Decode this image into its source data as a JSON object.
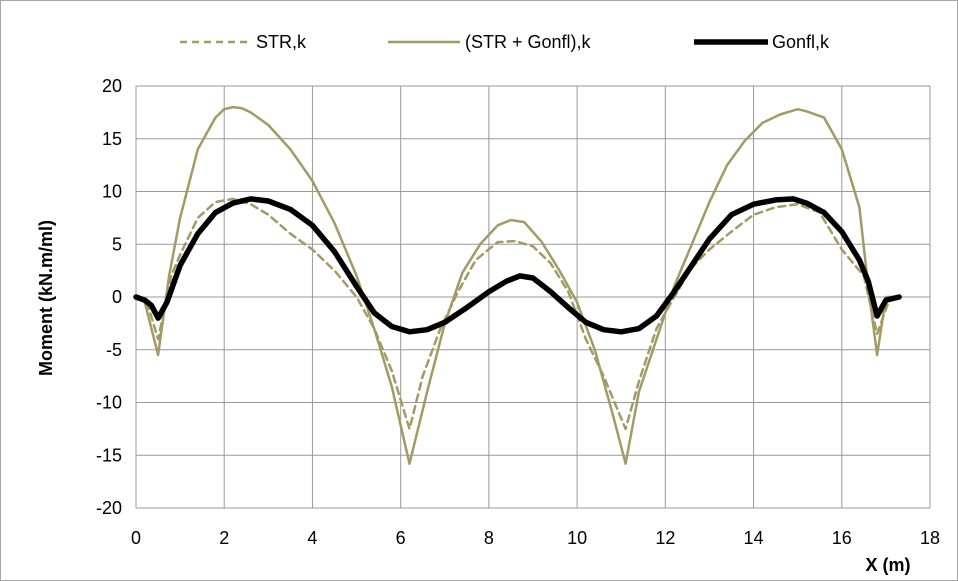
{
  "colors": {
    "tan": "#a39a64",
    "black": "#000000",
    "grid": "#999999"
  },
  "chart_data": {
    "type": "line",
    "xlabel": "X (m)",
    "ylabel": "Moment (kN.m/ml)",
    "xlim": [
      0,
      18
    ],
    "ylim": [
      -20,
      20
    ],
    "xticks": [
      0,
      2,
      4,
      6,
      8,
      10,
      12,
      14,
      16,
      18
    ],
    "yticks": [
      -20,
      -15,
      -10,
      -5,
      0,
      5,
      10,
      15,
      20
    ],
    "grid": true,
    "legend_position": "top",
    "series": [
      {
        "name": "STR,k",
        "style": "dashed",
        "color": "#a39a64",
        "x": [
          0,
          0.25,
          0.5,
          0.8,
          1.0,
          1.4,
          1.8,
          2.2,
          2.6,
          3.0,
          3.5,
          4.0,
          4.5,
          5.0,
          5.4,
          5.8,
          6.2,
          6.5,
          6.9,
          7.3,
          7.7,
          8.2,
          8.6,
          9.0,
          9.4,
          9.8,
          10.2,
          10.6,
          11.1,
          11.4,
          11.8,
          12.2,
          12.6,
          13.0,
          13.5,
          14.0,
          14.5,
          15.0,
          15.5,
          16.0,
          16.5,
          16.8,
          17.1,
          17.3
        ],
        "y": [
          0,
          -0.5,
          -4,
          2,
          4,
          7.5,
          9,
          9.3,
          8.8,
          7.8,
          6,
          4.5,
          2.5,
          0,
          -3,
          -7,
          -12.5,
          -7.5,
          -3,
          0.5,
          3.5,
          5.2,
          5.3,
          4.8,
          3.2,
          0.5,
          -4,
          -7.5,
          -12.5,
          -8,
          -3,
          0,
          2.8,
          4.5,
          6.2,
          7.8,
          8.5,
          8.8,
          8.0,
          4.5,
          2.0,
          -3.5,
          0,
          0
        ]
      },
      {
        "name": "(STR + Gonfl),k",
        "style": "solid",
        "color": "#a39a64",
        "x": [
          0,
          0.2,
          0.5,
          0.75,
          1.0,
          1.4,
          1.8,
          2.0,
          2.2,
          2.4,
          2.6,
          3.0,
          3.5,
          4.0,
          4.5,
          5.0,
          5.4,
          5.8,
          6.2,
          6.6,
          7.0,
          7.4,
          7.8,
          8.2,
          8.5,
          8.8,
          9.2,
          9.6,
          10.0,
          10.4,
          10.8,
          11.1,
          11.4,
          11.8,
          12.2,
          12.6,
          13.0,
          13.4,
          13.8,
          14.2,
          14.6,
          15.0,
          15.2,
          15.6,
          16.0,
          16.4,
          16.6,
          16.8,
          17.0,
          17.3
        ],
        "y": [
          0,
          -0.5,
          -5.5,
          2,
          7.5,
          14,
          17,
          17.8,
          18,
          17.9,
          17.5,
          16.3,
          14,
          11,
          7,
          2,
          -3,
          -8.5,
          -15.8,
          -9,
          -2.5,
          2.3,
          5,
          6.8,
          7.3,
          7.1,
          5.2,
          2.5,
          -0.5,
          -5,
          -11,
          -15.8,
          -9,
          -4,
          1,
          5,
          9,
          12.5,
          14.8,
          16.5,
          17.3,
          17.8,
          17.6,
          17.0,
          14,
          8.5,
          1,
          -5.5,
          0,
          0
        ]
      },
      {
        "name": "Gonfl,k",
        "style": "solid",
        "color": "#000000",
        "x": [
          0,
          0.2,
          0.35,
          0.5,
          0.7,
          1.0,
          1.4,
          1.8,
          2.2,
          2.6,
          3.0,
          3.5,
          4.0,
          4.5,
          5.0,
          5.4,
          5.8,
          6.2,
          6.6,
          7.0,
          7.5,
          8.0,
          8.4,
          8.7,
          9.0,
          9.4,
          9.8,
          10.2,
          10.6,
          11.0,
          11.4,
          11.8,
          12.2,
          12.6,
          13.0,
          13.5,
          14.0,
          14.5,
          14.9,
          15.2,
          15.6,
          16.0,
          16.4,
          16.6,
          16.8,
          17.0,
          17.3
        ],
        "y": [
          0,
          -0.3,
          -0.8,
          -2,
          -0.5,
          3,
          6,
          8,
          8.9,
          9.3,
          9.1,
          8.3,
          6.8,
          4.3,
          1,
          -1.5,
          -2.8,
          -3.3,
          -3.1,
          -2.4,
          -1,
          0.5,
          1.5,
          2,
          1.8,
          0.5,
          -1,
          -2.4,
          -3.1,
          -3.3,
          -3,
          -1.8,
          0.5,
          3,
          5.5,
          7.8,
          8.8,
          9.2,
          9.3,
          8.9,
          8.0,
          6.2,
          3.5,
          1.5,
          -1.8,
          -0.3,
          0
        ]
      }
    ]
  }
}
